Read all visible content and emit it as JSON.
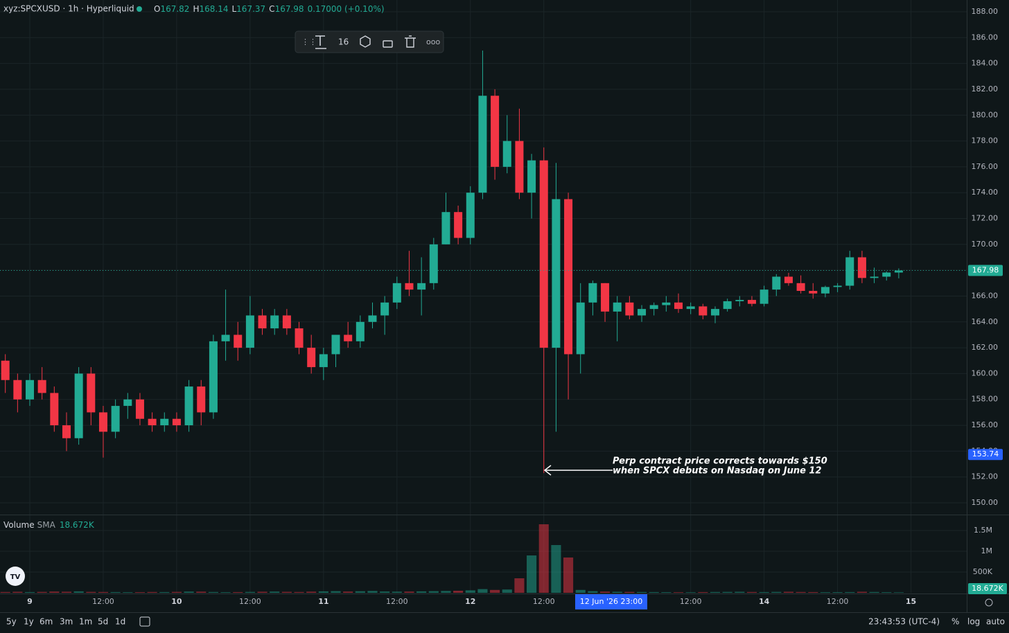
{
  "header": {
    "symbol": "xyz:SPCXUSD · 1h · Hyperliquid",
    "ohlc": [
      {
        "key": "O",
        "value": "167.82"
      },
      {
        "key": "H",
        "value": "168.14"
      },
      {
        "key": "L",
        "value": "167.37"
      },
      {
        "key": "C",
        "value": "167.98"
      }
    ],
    "change": "0.17000 (+0.10%)"
  },
  "toolbar": {
    "font_size": "16"
  },
  "volume_legend": {
    "name": "Volume",
    "indicator": "SMA",
    "value": "18.672K"
  },
  "crosshair_time": "12 Jun '26  23:00",
  "annotation": [
    "Perp contract price corrects towards $150",
    "when SPCX debuts on Nasdaq on June 12"
  ],
  "bottom_bar": {
    "ranges": [
      "5y",
      "1y",
      "6m",
      "3m",
      "1m",
      "5d",
      "1d"
    ],
    "clock": "23:43:53 (UTC-4)",
    "options": [
      "%",
      "log",
      "auto"
    ]
  },
  "chart_data": {
    "type": "candlestick",
    "up_color": "#22ab94",
    "down_color": "#f23645",
    "grid": true,
    "xlim": [
      -4.87,
      153.11
    ],
    "ylim": [
      149.09,
      188.91
    ],
    "y2lim": [
      0,
      1850000
    ],
    "xticks": [
      {
        "value": 0,
        "label": "9"
      },
      {
        "value": 12,
        "label": "12:00"
      },
      {
        "value": 24,
        "label": "10"
      },
      {
        "value": 36,
        "label": "12:00"
      },
      {
        "value": 48,
        "label": "11"
      },
      {
        "value": 60,
        "label": "12:00"
      },
      {
        "value": 72,
        "label": "12"
      },
      {
        "value": 84,
        "label": "12:00"
      },
      {
        "value": 108,
        "label": "12:00"
      },
      {
        "value": 120,
        "label": "14"
      },
      {
        "value": 132,
        "label": "12:00"
      },
      {
        "value": 144,
        "label": "15"
      }
    ],
    "yticks": [
      {
        "value": 150,
        "label": "150.00"
      },
      {
        "value": 152,
        "label": "152.00"
      },
      {
        "value": 154,
        "label": "154.00"
      },
      {
        "value": 156,
        "label": "156.00"
      },
      {
        "value": 158,
        "label": "158.00"
      },
      {
        "value": 160,
        "label": "160.00"
      },
      {
        "value": 162,
        "label": "162.00"
      },
      {
        "value": 164,
        "label": "164.00"
      },
      {
        "value": 166,
        "label": "166.00"
      },
      {
        "value": 168,
        "label": "168.00"
      },
      {
        "value": 170,
        "label": "170.00"
      },
      {
        "value": 172,
        "label": "172.00"
      },
      {
        "value": 174,
        "label": "174.00"
      },
      {
        "value": 176,
        "label": "176.00"
      },
      {
        "value": 178,
        "label": "178.00"
      },
      {
        "value": 180,
        "label": "180.00"
      },
      {
        "value": 182,
        "label": "182.00"
      },
      {
        "value": 184,
        "label": "184.00"
      },
      {
        "value": 186,
        "label": "186.00"
      },
      {
        "value": 188,
        "label": "188.00"
      }
    ],
    "y2ticks": [
      {
        "value": 500000,
        "label": "500K"
      },
      {
        "value": 1000000,
        "label": "1M"
      },
      {
        "value": 1500000,
        "label": "1.5M"
      }
    ],
    "last_price": 167.98,
    "crosshair_price": 153.74,
    "volume_sma": {
      "value": 18672,
      "label": "18.672K"
    },
    "x": [
      -4,
      -2,
      0,
      2,
      4,
      6,
      8,
      10,
      12,
      14,
      16,
      18,
      20,
      22,
      24,
      26,
      28,
      30,
      32,
      34,
      36,
      38,
      40,
      42,
      44,
      46,
      48,
      50,
      52,
      54,
      56,
      58,
      60,
      62,
      64,
      66,
      68,
      70,
      72,
      74,
      76,
      78,
      80,
      82,
      84,
      86,
      88,
      90,
      92,
      94,
      96,
      98,
      100,
      102,
      104,
      106,
      108,
      110,
      112,
      114,
      116,
      118,
      120,
      122,
      124,
      126,
      128,
      130,
      132,
      134,
      136,
      138,
      140,
      142
    ],
    "open": [
      161,
      159.5,
      158,
      159.5,
      158.5,
      156,
      155,
      160,
      157,
      155.5,
      157.5,
      158,
      156.5,
      156,
      156.5,
      156,
      159,
      157,
      162.5,
      163,
      162,
      164.5,
      163.5,
      164.5,
      163.5,
      162,
      160.5,
      161.5,
      163,
      162.5,
      164,
      164.5,
      165.5,
      167,
      166.5,
      167,
      170,
      172.5,
      170.5,
      174,
      181.5,
      176,
      178,
      174,
      176.5,
      162,
      173.5,
      161.5,
      165.5,
      167,
      164.8,
      165.5,
      164.5,
      165,
      165.3,
      165.5,
      165,
      165.2,
      164.5,
      165,
      165.6,
      165.7,
      165.4,
      166.5,
      167.5,
      167,
      166.4,
      166.2,
      166.7,
      166.8,
      169,
      167.4,
      167.5,
      167.82
    ],
    "high": [
      161.5,
      160,
      160,
      160.5,
      159,
      157,
      160.5,
      160.5,
      157.5,
      158,
      158.5,
      158.5,
      157,
      157,
      157,
      159.5,
      159.5,
      163,
      166.5,
      164,
      166,
      165,
      165,
      165,
      164,
      163,
      162,
      163,
      164,
      164.5,
      165.5,
      166,
      167.5,
      169.5,
      169,
      170.5,
      174,
      173,
      174.5,
      185,
      182,
      180,
      180.5,
      177,
      177.5,
      176.3,
      174,
      167,
      167.2,
      167,
      166,
      166,
      165.3,
      165.5,
      166,
      166.2,
      165.5,
      165.4,
      165.2,
      165.8,
      166,
      166,
      166.8,
      167.7,
      167.8,
      167.6,
      167,
      166.8,
      167,
      169.5,
      169.5,
      168.2,
      167.9,
      168.14
    ],
    "low": [
      158.5,
      157,
      157.5,
      158,
      155.5,
      154,
      154.5,
      156,
      153.5,
      155,
      156.5,
      156,
      155.5,
      155.5,
      155.5,
      155.5,
      156,
      156.5,
      161,
      161,
      161.5,
      163,
      163,
      163,
      161.5,
      160,
      159.5,
      160.5,
      162,
      162,
      163.5,
      163,
      165,
      166,
      164.5,
      166.5,
      170,
      170,
      170,
      173.5,
      175,
      175.5,
      173.5,
      172,
      152.3,
      155.5,
      158,
      160,
      164.5,
      164,
      162.5,
      164.2,
      164,
      164.5,
      164.8,
      164.7,
      164.6,
      164.2,
      163.9,
      164.8,
      165.2,
      165.2,
      165.2,
      166,
      166.8,
      166.2,
      165.8,
      165.9,
      166.3,
      166.5,
      167,
      167,
      167.2,
      167.37
    ],
    "close": [
      159.5,
      158,
      159.5,
      158.5,
      156,
      155,
      160,
      157,
      155.5,
      157.5,
      158,
      156.5,
      156,
      156.5,
      156,
      159,
      157,
      162.5,
      163,
      162,
      164.5,
      163.5,
      164.5,
      163.5,
      162,
      160.5,
      161.5,
      163,
      162.5,
      164,
      164.5,
      165.5,
      167,
      166.5,
      167,
      170,
      172.5,
      170.5,
      174,
      181.5,
      176,
      178,
      174,
      176.5,
      162,
      173.5,
      161.5,
      165.5,
      167,
      164.8,
      165.5,
      164.5,
      165,
      165.3,
      165.5,
      165,
      165.2,
      164.5,
      165,
      165.6,
      165.7,
      165.4,
      166.5,
      167.5,
      167,
      166.4,
      166.2,
      166.7,
      166.8,
      169,
      167.4,
      167.5,
      167.82,
      167.98
    ],
    "volume": [
      20000,
      25000,
      18000,
      22000,
      30000,
      26000,
      35000,
      22000,
      20000,
      18000,
      15000,
      16000,
      20000,
      18000,
      22000,
      30000,
      28000,
      20000,
      15000,
      18000,
      22000,
      26000,
      30000,
      24000,
      20000,
      28000,
      35000,
      40000,
      30000,
      38000,
      45000,
      32000,
      28000,
      30000,
      35000,
      40000,
      45000,
      50000,
      60000,
      90000,
      70000,
      80000,
      350000,
      900000,
      1650000,
      1150000,
      850000,
      70000,
      40000,
      30000,
      25000,
      22000,
      20000,
      18000,
      16000,
      15000,
      14000,
      18000,
      20000,
      22000,
      25000,
      20000,
      18000,
      22000,
      25000,
      20000,
      18000,
      15000,
      16000,
      18000,
      25000,
      20000,
      15000,
      12000
    ]
  }
}
